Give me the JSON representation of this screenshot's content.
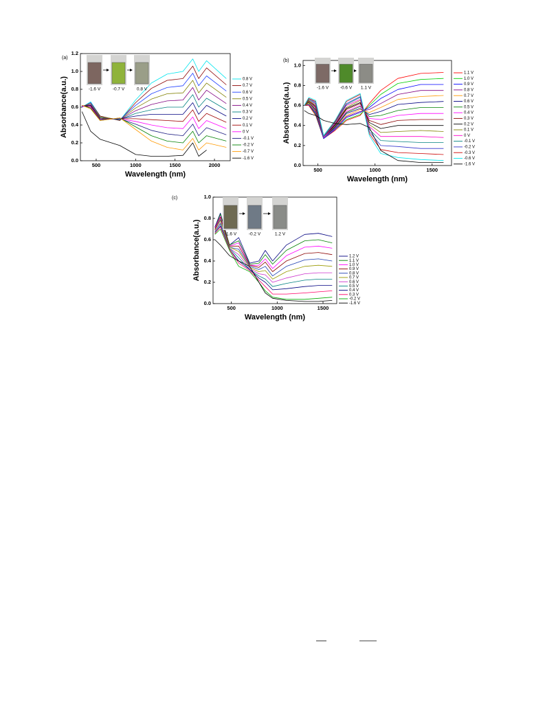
{
  "chart_data": [
    {
      "type": "line",
      "label": "(a)",
      "xlabel": "Wavelength (nm)",
      "ylabel": "Absorbance(a.u.)",
      "xlim": [
        300,
        2200
      ],
      "xticks": [
        500,
        1000,
        1500,
        2000
      ],
      "ylim": [
        0,
        1.2
      ],
      "yticks": [
        {
          "value": 0,
          "label": "0.0"
        },
        0.2,
        0.4,
        0.6,
        0.8,
        {
          "value": 1,
          "label": "1.0"
        },
        1.2
      ],
      "legend": "right",
      "insets": [
        {
          "label": "-1.6 V",
          "color": "#7d6660"
        },
        {
          "label": "-0.7 V",
          "color": "#8fb33a"
        },
        {
          "label": "0.8 V",
          "color": "#9a9e88"
        }
      ],
      "x": [
        320,
        430,
        550,
        800,
        1000,
        1200,
        1400,
        1600,
        1725,
        1800,
        1900,
        2150
      ],
      "series": [
        {
          "name": "0.8 V",
          "color": "#00e5ee",
          "values": [
            0.6,
            0.66,
            0.5,
            0.45,
            0.68,
            0.87,
            0.97,
            1.0,
            1.14,
            1.0,
            1.12,
            0.92
          ]
        },
        {
          "name": "0.7 V",
          "color": "#8b0000",
          "values": [
            0.6,
            0.65,
            0.5,
            0.45,
            0.65,
            0.81,
            0.9,
            0.92,
            1.06,
            0.92,
            1.04,
            0.85
          ]
        },
        {
          "name": "0.6 V",
          "color": "#2040ff",
          "values": [
            0.6,
            0.65,
            0.49,
            0.46,
            0.62,
            0.75,
            0.82,
            0.84,
            0.98,
            0.84,
            0.95,
            0.78
          ]
        },
        {
          "name": "0.5 V",
          "color": "#808000",
          "values": [
            0.61,
            0.64,
            0.49,
            0.46,
            0.59,
            0.69,
            0.75,
            0.76,
            0.9,
            0.76,
            0.87,
            0.71
          ]
        },
        {
          "name": "0.4 V",
          "color": "#800080",
          "values": [
            0.61,
            0.63,
            0.48,
            0.46,
            0.56,
            0.63,
            0.67,
            0.68,
            0.82,
            0.68,
            0.79,
            0.64
          ]
        },
        {
          "name": "0.3 V",
          "color": "#008080",
          "values": [
            0.61,
            0.62,
            0.48,
            0.46,
            0.53,
            0.57,
            0.6,
            0.6,
            0.74,
            0.6,
            0.7,
            0.57
          ]
        },
        {
          "name": "0.2 V",
          "color": "#000080",
          "values": [
            0.61,
            0.62,
            0.47,
            0.47,
            0.5,
            0.52,
            0.52,
            0.52,
            0.65,
            0.52,
            0.62,
            0.5
          ]
        },
        {
          "name": "0.1 V",
          "color": "#a00000",
          "values": [
            0.61,
            0.61,
            0.47,
            0.47,
            0.47,
            0.46,
            0.45,
            0.44,
            0.57,
            0.44,
            0.53,
            0.43
          ]
        },
        {
          "name": "0  V",
          "color": "#ff00ff",
          "values": [
            0.61,
            0.6,
            0.46,
            0.47,
            0.44,
            0.4,
            0.37,
            0.36,
            0.49,
            0.36,
            0.45,
            0.36
          ]
        },
        {
          "name": "-0.1 V",
          "color": "#1a1a80",
          "values": [
            0.62,
            0.59,
            0.46,
            0.47,
            0.41,
            0.34,
            0.3,
            0.28,
            0.41,
            0.28,
            0.37,
            0.29
          ]
        },
        {
          "name": "-0.2 V",
          "color": "#008000",
          "values": [
            0.62,
            0.59,
            0.45,
            0.48,
            0.38,
            0.28,
            0.22,
            0.2,
            0.33,
            0.2,
            0.28,
            0.22
          ]
        },
        {
          "name": "-0.7 V",
          "color": "#ff9900",
          "values": [
            0.62,
            0.58,
            0.45,
            0.48,
            0.35,
            0.22,
            0.15,
            0.12,
            0.25,
            0.12,
            0.2,
            0.15
          ]
        },
        {
          "name": "-1.6 V",
          "color": "#000000",
          "values": [
            0.55,
            0.33,
            0.24,
            0.17,
            0.07,
            0.05,
            0.05,
            0.06,
            0.2,
            0.05,
            0.12,
            null
          ]
        }
      ]
    },
    {
      "type": "line",
      "label": "(b)",
      "xlabel": "Wavelength (nm)",
      "ylabel": "Absorbance(a.u.)",
      "xlim": [
        370,
        1670
      ],
      "xticks": [
        500,
        1000,
        1500
      ],
      "ylim": [
        0,
        1.05
      ],
      "yticks": [
        {
          "value": 0,
          "label": "0.0"
        },
        0.2,
        0.4,
        0.6,
        0.8,
        {
          "value": 1,
          "label": "1.0"
        }
      ],
      "legend": "right",
      "insets": [
        {
          "label": "-1.6 V",
          "color": "#7d6a66"
        },
        {
          "label": "-0.6 V",
          "color": "#4f8a2a"
        },
        {
          "label": "1.1 V",
          "color": "#8c8c86"
        }
      ],
      "x": [
        380,
        420,
        480,
        550,
        650,
        750,
        870,
        950,
        1050,
        1200,
        1400,
        1600
      ],
      "series": [
        {
          "name": "1.1 V",
          "color": "#ff0000",
          "values": [
            0.6,
            0.6,
            0.5,
            0.27,
            0.35,
            0.45,
            0.5,
            0.62,
            0.75,
            0.87,
            0.92,
            0.93
          ]
        },
        {
          "name": "1.0 V",
          "color": "#00cc00",
          "values": [
            0.6,
            0.61,
            0.51,
            0.27,
            0.36,
            0.46,
            0.51,
            0.6,
            0.71,
            0.82,
            0.86,
            0.87
          ]
        },
        {
          "name": "0.9 V",
          "color": "#0000ff",
          "values": [
            0.6,
            0.61,
            0.52,
            0.27,
            0.36,
            0.48,
            0.53,
            0.58,
            0.67,
            0.76,
            0.81,
            0.81
          ]
        },
        {
          "name": "0.8 V",
          "color": "#800080",
          "values": [
            0.6,
            0.62,
            0.53,
            0.28,
            0.37,
            0.49,
            0.54,
            0.56,
            0.62,
            0.71,
            0.75,
            0.75
          ]
        },
        {
          "name": "0.7 V",
          "color": "#ff9900",
          "values": [
            0.6,
            0.62,
            0.54,
            0.28,
            0.38,
            0.5,
            0.56,
            0.53,
            0.58,
            0.66,
            0.69,
            0.7
          ]
        },
        {
          "name": "0.6 V",
          "color": "#000080",
          "values": [
            0.6,
            0.63,
            0.55,
            0.28,
            0.38,
            0.52,
            0.57,
            0.51,
            0.54,
            0.61,
            0.63,
            0.64
          ]
        },
        {
          "name": "0.5 V",
          "color": "#008000",
          "values": [
            0.6,
            0.63,
            0.56,
            0.28,
            0.39,
            0.53,
            0.59,
            0.49,
            0.5,
            0.55,
            0.58,
            0.58
          ]
        },
        {
          "name": "0.4 V",
          "color": "#ff00ff",
          "values": [
            0.6,
            0.64,
            0.57,
            0.28,
            0.4,
            0.54,
            0.6,
            0.47,
            0.46,
            0.5,
            0.52,
            0.52
          ]
        },
        {
          "name": "0.3 V",
          "color": "#8b0000",
          "values": [
            0.6,
            0.64,
            0.58,
            0.29,
            0.4,
            0.56,
            0.62,
            0.45,
            0.41,
            0.45,
            0.46,
            0.46
          ]
        },
        {
          "name": "0.2 V",
          "color": "#000000",
          "values": [
            0.6,
            0.65,
            0.59,
            0.29,
            0.41,
            0.57,
            0.63,
            0.43,
            0.37,
            0.4,
            0.4,
            0.4
          ]
        },
        {
          "name": "0.1 V",
          "color": "#808000",
          "values": [
            0.6,
            0.65,
            0.6,
            0.29,
            0.42,
            0.58,
            0.65,
            0.41,
            0.33,
            0.34,
            0.35,
            0.34
          ]
        },
        {
          "name": "0  V",
          "color": "#ff00cc",
          "values": [
            0.6,
            0.66,
            0.61,
            0.29,
            0.42,
            0.6,
            0.66,
            0.39,
            0.29,
            0.29,
            0.29,
            0.28
          ]
        },
        {
          "name": "-0.1 V",
          "color": "#008080",
          "values": [
            0.6,
            0.66,
            0.62,
            0.29,
            0.43,
            0.61,
            0.68,
            0.36,
            0.25,
            0.24,
            0.23,
            0.23
          ]
        },
        {
          "name": "-0.2 V",
          "color": "#3333cc",
          "values": [
            0.6,
            0.67,
            0.63,
            0.3,
            0.44,
            0.62,
            0.69,
            0.34,
            0.2,
            0.19,
            0.17,
            0.17
          ]
        },
        {
          "name": "-0.3 V",
          "color": "#cc0000",
          "values": [
            0.6,
            0.67,
            0.64,
            0.3,
            0.44,
            0.64,
            0.71,
            0.32,
            0.16,
            0.13,
            0.12,
            0.11
          ]
        },
        {
          "name": "-0.6 V",
          "color": "#00e5ee",
          "values": [
            0.6,
            0.68,
            0.65,
            0.3,
            0.45,
            0.65,
            0.72,
            0.3,
            0.12,
            0.08,
            0.06,
            0.05
          ]
        },
        {
          "name": "-1.6 V",
          "color": "#000000",
          "values": [
            0.55,
            0.52,
            0.5,
            0.45,
            0.42,
            0.41,
            0.42,
            0.38,
            0.15,
            0.05,
            0.03,
            0.03
          ]
        }
      ]
    },
    {
      "type": "line",
      "label": "(c)",
      "xlabel": "Wavelength (nm)",
      "ylabel": "Absorbance(a.u.)",
      "xlim": [
        300,
        1650
      ],
      "xticks": [
        500,
        1000,
        1500
      ],
      "ylim": [
        0,
        1.0
      ],
      "yticks": [
        {
          "value": 0,
          "label": "0.0"
        },
        0.2,
        0.4,
        0.6,
        0.8,
        {
          "value": 1,
          "label": "1.0"
        }
      ],
      "legend": "right",
      "insets": [
        {
          "label": "-1.6 V",
          "color": "#6e6a52"
        },
        {
          "label": "-0.2 V",
          "color": "#6f7a86"
        },
        {
          "label": "1.2 V",
          "color": "#8a8c88"
        }
      ],
      "x": [
        320,
        380,
        480,
        580,
        700,
        800,
        870,
        950,
        1100,
        1300,
        1450,
        1600
      ],
      "series": [
        {
          "name": "1.2 V",
          "color": "#000080",
          "values": [
            0.72,
            0.85,
            0.55,
            0.62,
            0.38,
            0.4,
            0.5,
            0.4,
            0.55,
            0.65,
            0.66,
            0.63
          ]
        },
        {
          "name": "1.1 V",
          "color": "#008000",
          "values": [
            0.71,
            0.84,
            0.55,
            0.59,
            0.37,
            0.38,
            0.46,
            0.37,
            0.5,
            0.59,
            0.6,
            0.57
          ]
        },
        {
          "name": "1.0 V",
          "color": "#ff00ff",
          "values": [
            0.71,
            0.82,
            0.54,
            0.57,
            0.36,
            0.36,
            0.42,
            0.33,
            0.45,
            0.53,
            0.54,
            0.52
          ]
        },
        {
          "name": "0.9 V",
          "color": "#8b0000",
          "values": [
            0.7,
            0.81,
            0.54,
            0.54,
            0.36,
            0.34,
            0.39,
            0.3,
            0.4,
            0.47,
            0.48,
            0.46
          ]
        },
        {
          "name": "0.8 V",
          "color": "#1a3cb0",
          "values": [
            0.69,
            0.79,
            0.53,
            0.51,
            0.35,
            0.32,
            0.35,
            0.26,
            0.35,
            0.41,
            0.42,
            0.4
          ]
        },
        {
          "name": "0.7 V",
          "color": "#999900",
          "values": [
            0.69,
            0.78,
            0.53,
            0.49,
            0.34,
            0.3,
            0.31,
            0.23,
            0.3,
            0.35,
            0.36,
            0.35
          ]
        },
        {
          "name": "0.6 V",
          "color": "#cc33cc",
          "values": [
            0.68,
            0.76,
            0.52,
            0.46,
            0.33,
            0.28,
            0.27,
            0.2,
            0.24,
            0.28,
            0.29,
            0.29
          ]
        },
        {
          "name": "0.5 V",
          "color": "#008080",
          "values": [
            0.67,
            0.75,
            0.52,
            0.43,
            0.32,
            0.26,
            0.23,
            0.16,
            0.19,
            0.22,
            0.23,
            0.23
          ]
        },
        {
          "name": "0.4 V",
          "color": "#000080",
          "values": [
            0.66,
            0.73,
            0.51,
            0.4,
            0.32,
            0.24,
            0.2,
            0.13,
            0.14,
            0.16,
            0.17,
            0.17
          ]
        },
        {
          "name": "0.3 V",
          "color": "#ff0066",
          "values": [
            0.66,
            0.72,
            0.51,
            0.38,
            0.31,
            0.22,
            0.16,
            0.09,
            0.09,
            0.1,
            0.11,
            0.12
          ]
        },
        {
          "name": "-0.2 V",
          "color": "#00aa00",
          "values": [
            0.65,
            0.7,
            0.5,
            0.35,
            0.3,
            0.2,
            0.12,
            0.06,
            0.04,
            0.04,
            0.05,
            0.06
          ]
        },
        {
          "name": "-1.6 V",
          "color": "#000000",
          "values": [
            0.6,
            0.55,
            0.45,
            0.4,
            0.35,
            0.2,
            0.1,
            0.05,
            0.03,
            0.02,
            0.02,
            0.03
          ]
        }
      ]
    }
  ]
}
